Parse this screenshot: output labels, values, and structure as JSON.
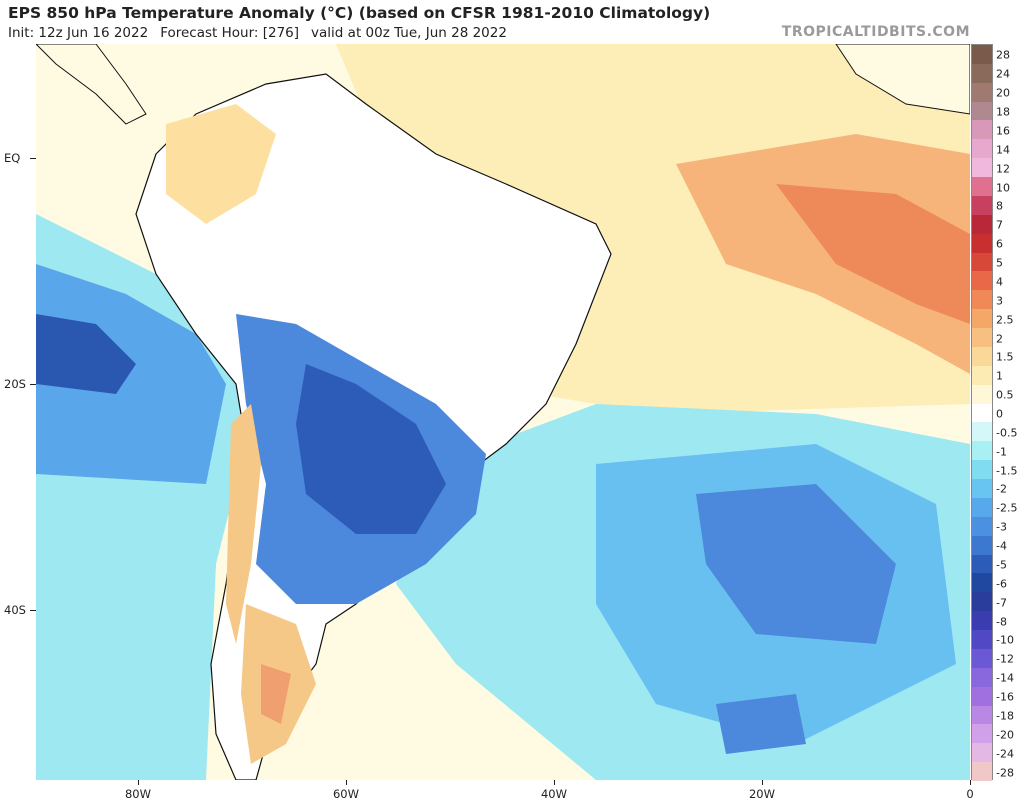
{
  "header": {
    "title": "EPS 850 hPa Temperature Anomaly (°C) (based on CFSR 1981-2010 Climatology)",
    "init": "Init: 12z Jun 16 2022",
    "forecast_hour": "Forecast Hour: [276]",
    "valid": "valid at 00z Tue, Jun 28 2022",
    "credit": "TROPICALTIDBITS.COM"
  },
  "axes": {
    "lat_labels": [
      "EQ",
      "20S",
      "40S"
    ],
    "lon_labels": [
      "80W",
      "60W",
      "40W",
      "20W",
      "0"
    ]
  },
  "colorbar": {
    "labels": [
      "28",
      "24",
      "20",
      "18",
      "16",
      "14",
      "12",
      "10",
      "8",
      "7",
      "6",
      "5",
      "4",
      "3",
      "2.5",
      "2",
      "1.5",
      "1",
      "0.5",
      "0",
      "-0.5",
      "-1",
      "-1.5",
      "-2",
      "-2.5",
      "-3",
      "-4",
      "-5",
      "-6",
      "-7",
      "-8",
      "-10",
      "-12",
      "-14",
      "-16",
      "-18",
      "-20",
      "-24",
      "-28"
    ],
    "colors": [
      "#7a5a4a",
      "#8a6a5a",
      "#a07a70",
      "#b08890",
      "#d898b8",
      "#e6a8cc",
      "#f0b8dc",
      "#e07090",
      "#c84060",
      "#b82838",
      "#c83030",
      "#d84838",
      "#e86848",
      "#f08858",
      "#f4a868",
      "#f8c080",
      "#fad898",
      "#fcecb4",
      "#fef8d8",
      "#ffffff",
      "#d4f8f8",
      "#a8f0f4",
      "#80dcf0",
      "#68c4f0",
      "#58a8ec",
      "#4c90e0",
      "#3c78d0",
      "#2c5cb8",
      "#2048a0",
      "#2a3c9c",
      "#3a3cb0",
      "#5048c4",
      "#6a58d4",
      "#8868dc",
      "#a070e0",
      "#b888e4",
      "#d0a0e8",
      "#e4b8e4",
      "#f0c8c8"
    ]
  }
}
